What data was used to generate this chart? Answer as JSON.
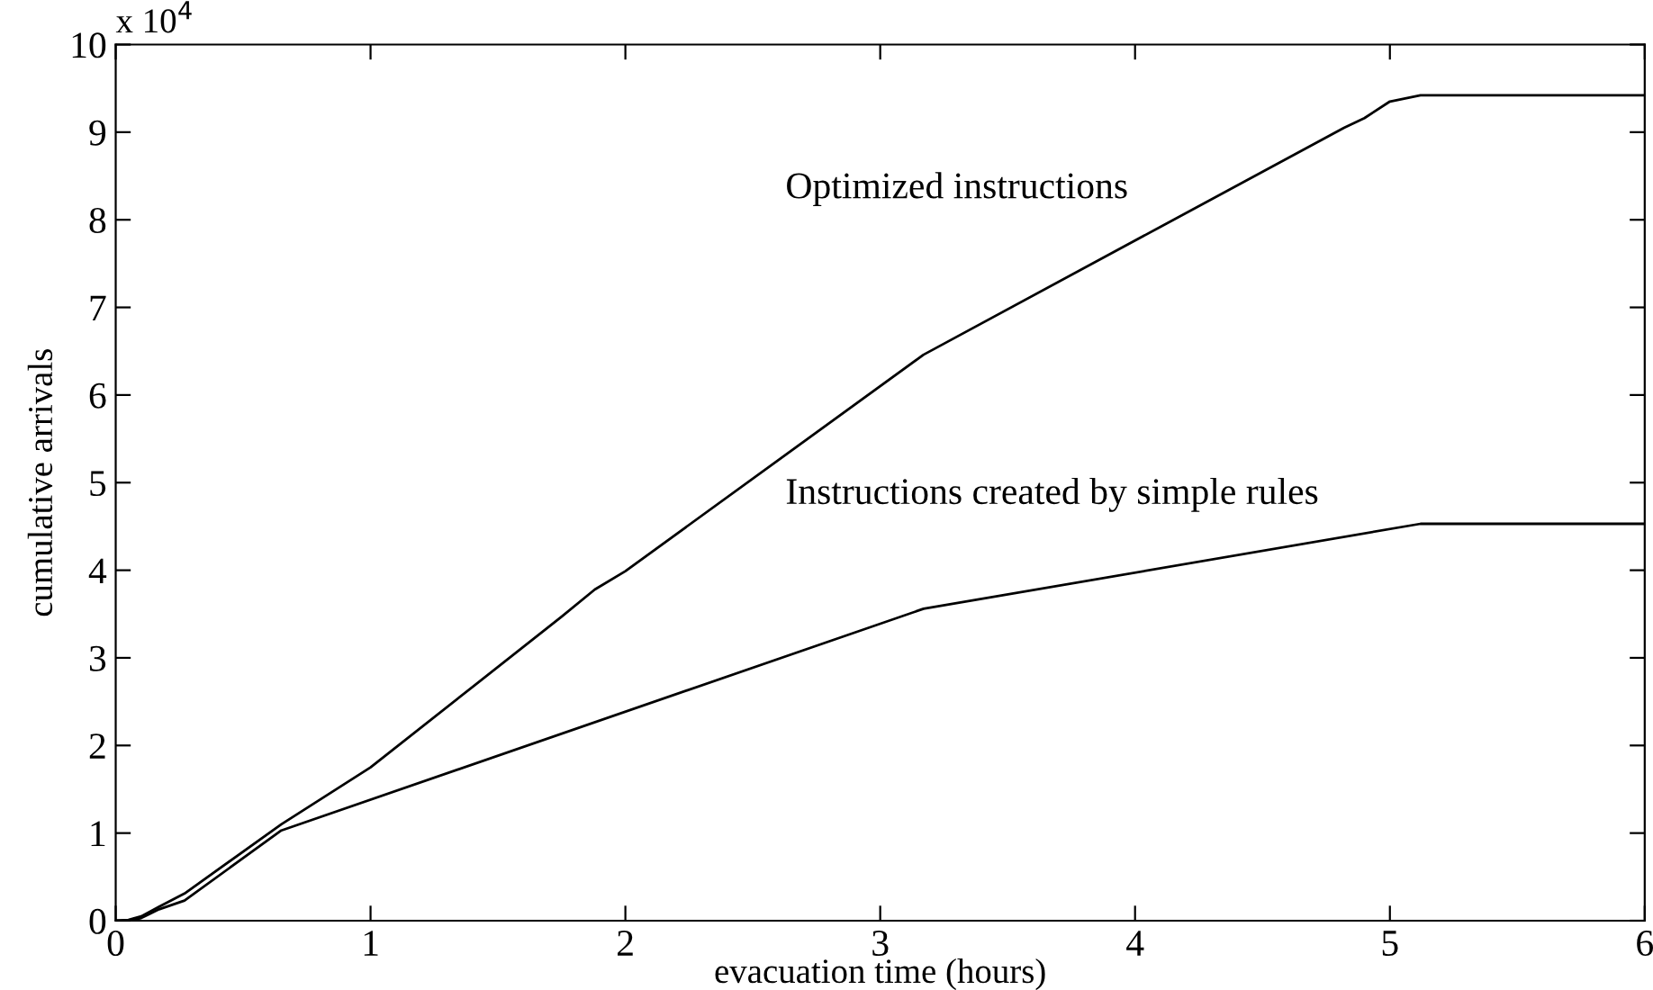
{
  "chart_data": {
    "type": "line",
    "xlabel": "evacuation time (hours)",
    "ylabel": "cumulative arrivals",
    "xlim": [
      0,
      6
    ],
    "xticks": [
      0,
      1,
      2,
      3,
      4,
      5,
      6
    ],
    "ylim": [
      0,
      10
    ],
    "yticks": [
      0,
      1,
      2,
      3,
      4,
      5,
      6,
      7,
      8,
      9,
      10
    ],
    "grid": false,
    "legend": false,
    "marker": "none",
    "line_style": "solid",
    "series": [
      {
        "name": "Optimized instructions",
        "color": "#000000",
        "x": [
          0,
          0.05,
          0.1,
          0.17,
          0.27,
          0.65,
          1.0,
          1.75,
          1.88,
          2.0,
          3.17,
          4.82,
          4.9,
          5.0,
          5.12,
          6
        ],
        "values": [
          0,
          0.01,
          0.05,
          0.16,
          0.31,
          1.1,
          1.75,
          3.47,
          3.78,
          3.99,
          6.46,
          9.05,
          9.16,
          9.35,
          9.42,
          9.42
        ]
      },
      {
        "name": "Instructions created by simple rules",
        "color": "#000000",
        "x": [
          0,
          0.05,
          0.1,
          0.17,
          0.27,
          0.65,
          3.17,
          5.12,
          6
        ],
        "values": [
          0,
          0.0,
          0.03,
          0.13,
          0.23,
          1.03,
          3.56,
          4.53,
          4.53
        ]
      }
    ],
    "annotations": [
      "x 10$^{4}$"
    ]
  }
}
